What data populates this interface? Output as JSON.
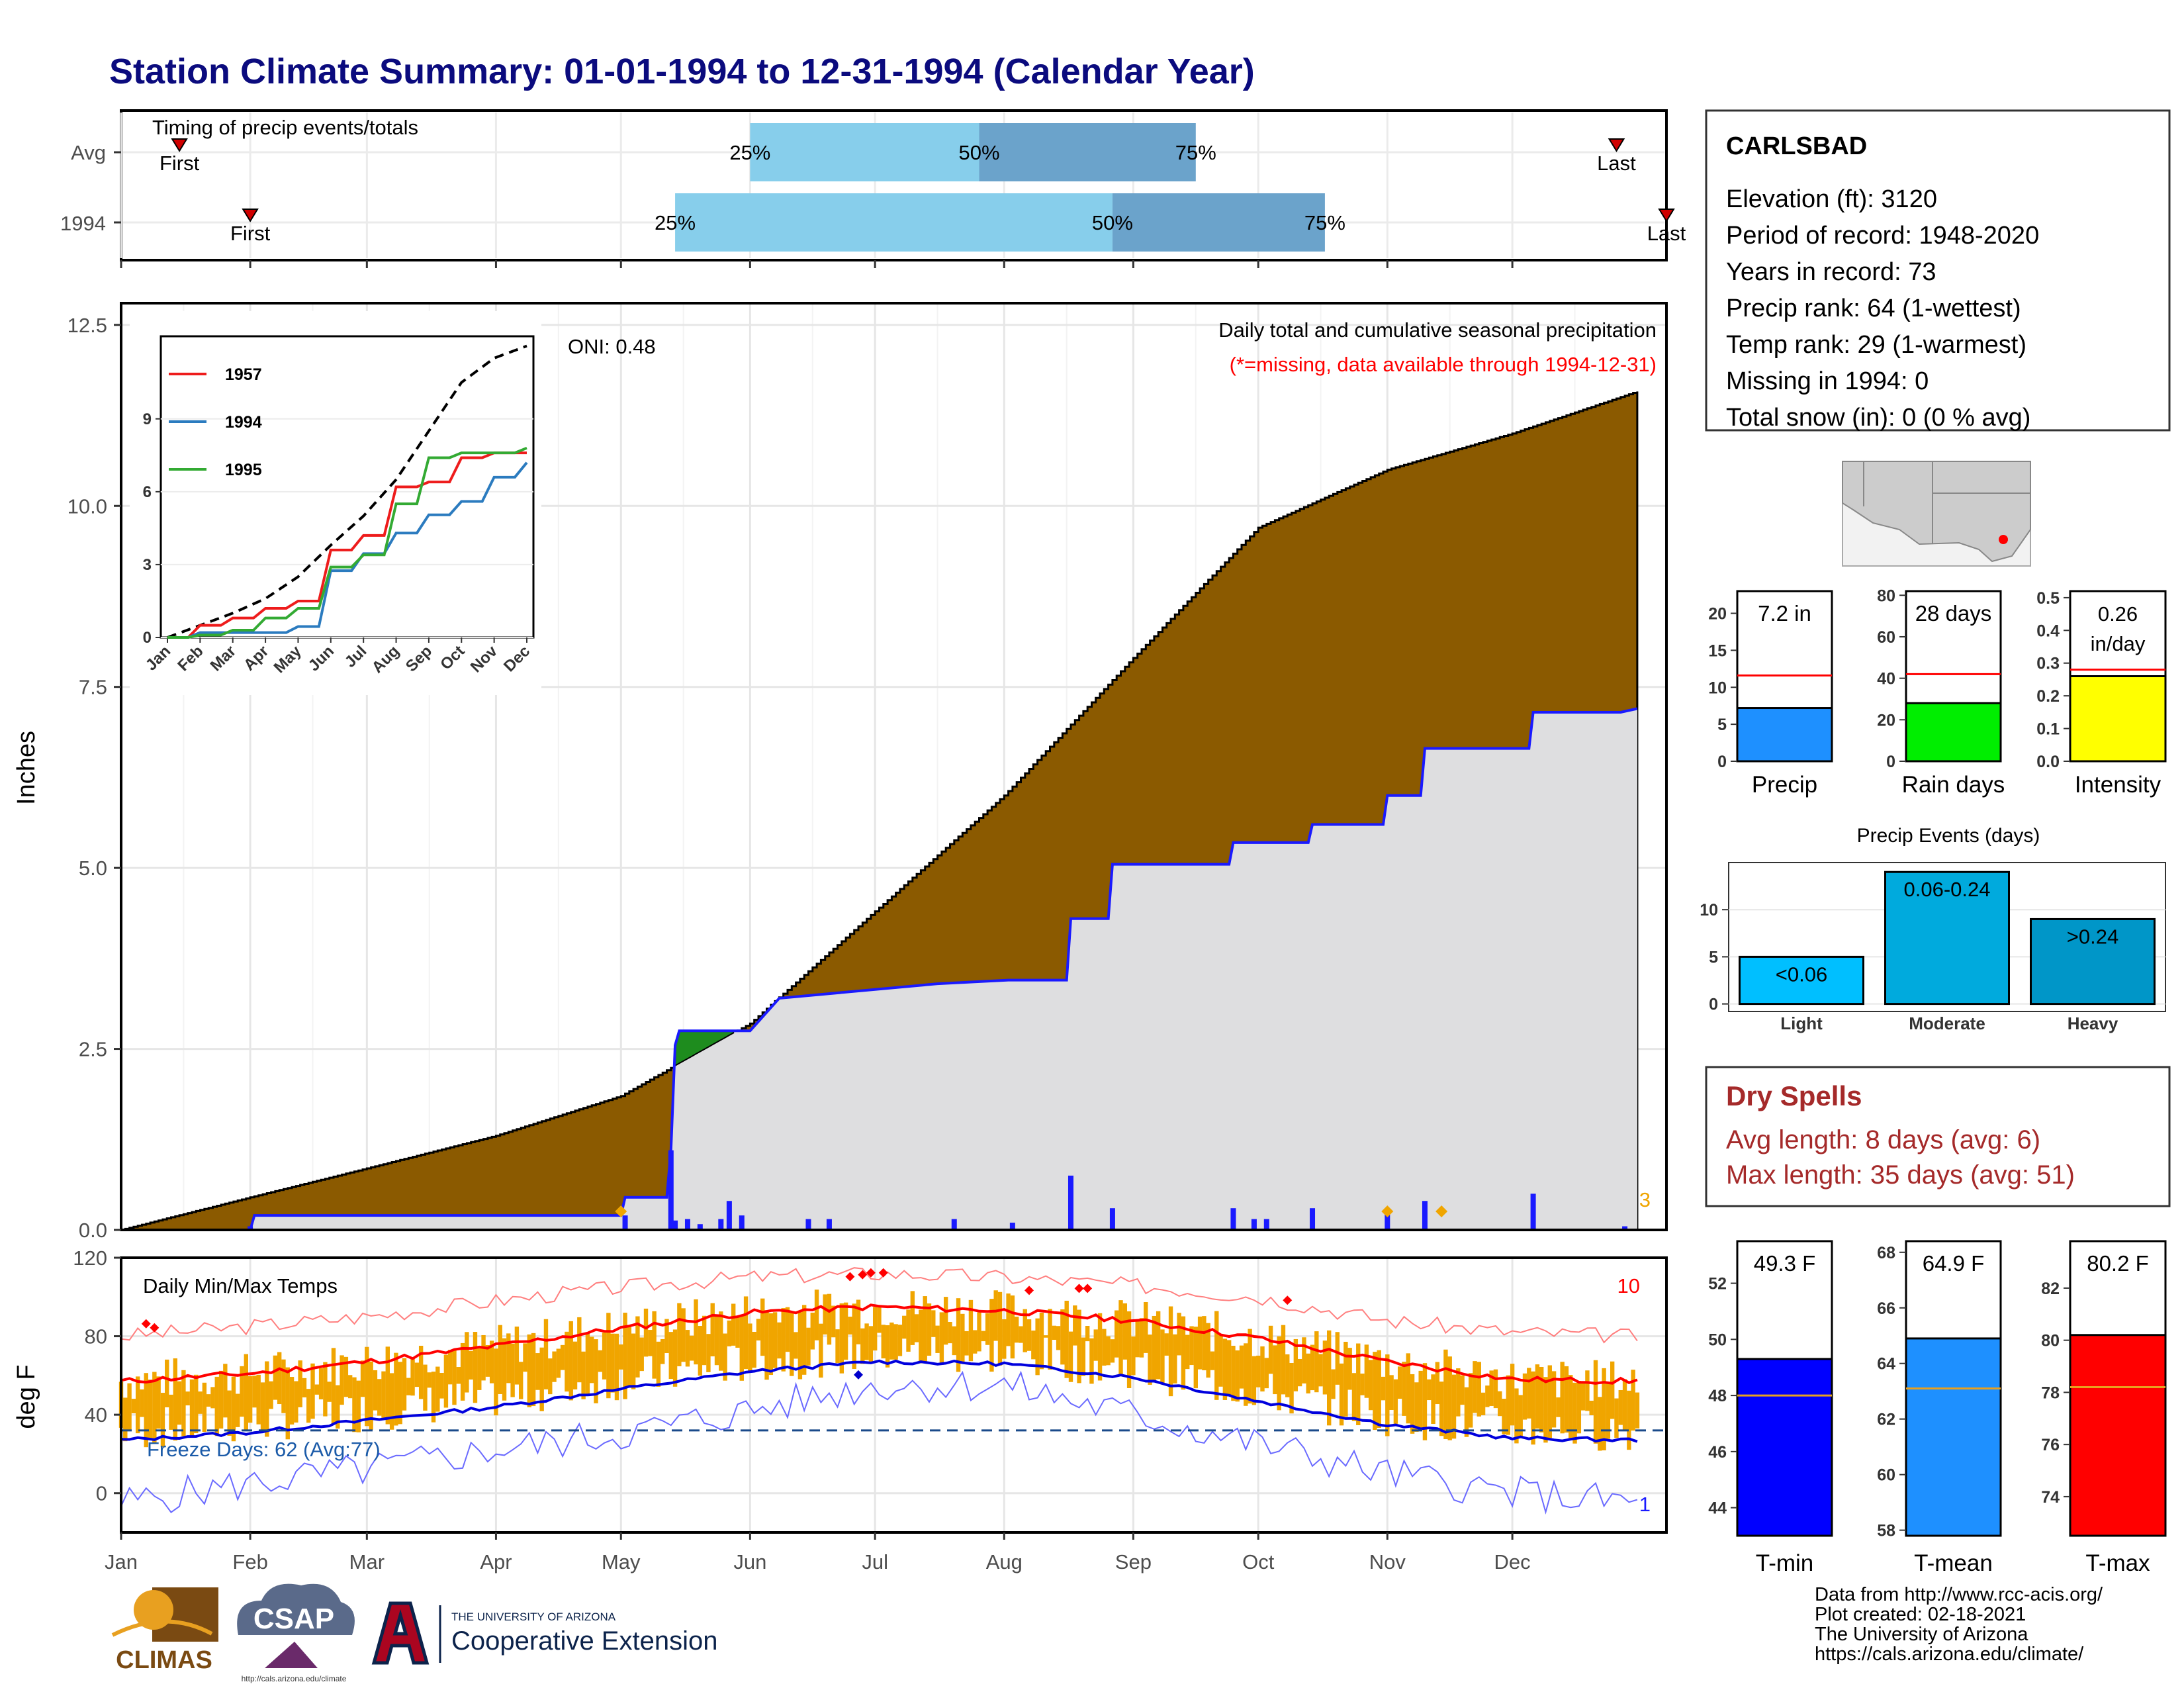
{
  "page": {
    "title": "Station Climate Summary: 01-01-1994 to 12-31-1994 (Calendar Year)",
    "months": [
      "Jan",
      "Feb",
      "Mar",
      "Apr",
      "May",
      "Jun",
      "Jul",
      "Aug",
      "Sep",
      "Oct",
      "Nov",
      "Dec"
    ]
  },
  "colors": {
    "title": "#0b0b7e",
    "brown": "#8b5a00",
    "gray_fill": "#dedee0",
    "blue_line": "#1a1aff",
    "light_blue": "#87ceeb",
    "mid_blue": "#6ba3cb",
    "red": "#ff0000",
    "orange": "#f0a500",
    "dark_red": "#a52a2a",
    "green_patch": "#1e8c1e"
  },
  "timing": {
    "label": "Timing of precip events/totals",
    "rows": [
      {
        "label": "Avg",
        "first": "First",
        "last": "Last",
        "p25": "25%",
        "p50": "50%",
        "p75": "75%",
        "first_day": 14,
        "p25_day": 151,
        "p50_day": 206,
        "p75_day": 258,
        "last_day": 359
      },
      {
        "label": "1994",
        "first": "First",
        "last": "Last",
        "p25": "25%",
        "p50": "50%",
        "p75": "75%",
        "first_day": 31,
        "p25_day": 133,
        "p50_day": 238,
        "p75_day": 289,
        "last_day": 371
      }
    ]
  },
  "precip_panel": {
    "ylabel": "Inches",
    "oni": "ONI: 0.48",
    "subtitle": "Daily total and cumulative seasonal precipitation",
    "note": "(*=missing, data available through 1994-12-31)",
    "count_label": "3"
  },
  "inset": {
    "months": [
      "Jan",
      "Feb",
      "Mar",
      "Apr",
      "May",
      "Jun",
      "Jul",
      "Aug",
      "Sep",
      "Oct",
      "Nov",
      "Dec"
    ],
    "yticks": [
      "0",
      "3",
      "6",
      "9"
    ],
    "legend": [
      {
        "name": "1957",
        "color": "#ee1c1c"
      },
      {
        "name": "1994",
        "color": "#2b7bbf"
      },
      {
        "name": "1995",
        "color": "#33aa33"
      }
    ]
  },
  "temp_panel": {
    "ylabel": "deg F",
    "title": "Daily Min/Max Temps",
    "freeze": "Freeze Days: 62 (Avg:77)",
    "count_hi": "10",
    "count_lo": "1"
  },
  "station": {
    "name": "CARLSBAD",
    "lines": [
      "Elevation (ft): 3120",
      "Period of record: 1948-2020",
      "Years in record: 73",
      "Precip rank: 64 (1-wettest)",
      "Temp rank: 29 (1-warmest)",
      "Missing in 1994: 0",
      "Total snow (in): 0 (0 % avg)"
    ]
  },
  "dry_spells": {
    "title": "Dry Spells",
    "avg": "Avg length: 8 days (avg: 6)",
    "max": "Max length: 35 days (avg: 51)"
  },
  "events": {
    "title": "Precip Events (days)",
    "bars": [
      {
        "name": "Light",
        "label": "<0.06",
        "value": 5,
        "color": "#00bfff"
      },
      {
        "name": "Moderate",
        "label": "0.06-0.24",
        "value": 14,
        "color": "#00aadd"
      },
      {
        "name": "Heavy",
        "label": ">0.24",
        "value": 9,
        "color": "#0096c8"
      }
    ]
  },
  "footer": {
    "lines": [
      "Data from http://www.rcc-acis.org/",
      "Plot created: 02-18-2021",
      "The University of Arizona",
      "https://cals.arizona.edu/climate/"
    ],
    "climas": "CLIMAS",
    "csap": "CSAP",
    "csap_url": "http://cals.arizona.edu/climate",
    "ua_small": "THE UNIVERSITY OF ARIZONA",
    "ua_big": "Cooperative Extension"
  },
  "chart_data": [
    {
      "type": "area",
      "title": "Daily total and cumulative seasonal precipitation",
      "ylabel": "Inches",
      "ylim": [
        0,
        12.8
      ],
      "yticks": [
        0,
        2.5,
        5.0,
        7.5,
        10.0,
        12.5
      ],
      "series": [
        {
          "name": "cumulative average",
          "x_day": [
            0,
            31,
            59,
            90,
            120,
            151,
            181,
            212,
            243,
            273,
            304,
            334,
            365
          ],
          "values": [
            0,
            0.45,
            0.85,
            1.3,
            1.85,
            2.85,
            4.4,
            6.0,
            7.9,
            9.7,
            10.5,
            11.0,
            11.6
          ]
        },
        {
          "name": "1994 cumulative",
          "x_day": [
            0,
            31,
            32,
            120,
            121,
            131,
            132,
            133,
            134,
            151,
            158,
            196,
            213,
            227,
            228,
            237,
            238,
            266,
            267,
            285,
            286,
            303,
            304,
            312,
            313,
            338,
            339,
            360,
            364
          ],
          "values": [
            0,
            0,
            0.2,
            0.2,
            0.45,
            0.45,
            1.1,
            2.55,
            2.75,
            2.75,
            3.2,
            3.4,
            3.45,
            3.45,
            4.3,
            4.3,
            5.05,
            5.05,
            5.35,
            5.35,
            5.6,
            5.6,
            6.0,
            6.0,
            6.65,
            6.65,
            7.15,
            7.15,
            7.2
          ]
        }
      ],
      "daily_bars": [
        {
          "day": 31,
          "value": 0.05
        },
        {
          "day": 121,
          "value": 0.2
        },
        {
          "day": 132,
          "value": 1.1
        },
        {
          "day": 133,
          "value": 0.13
        },
        {
          "day": 136,
          "value": 0.15
        },
        {
          "day": 139,
          "value": 0.08
        },
        {
          "day": 144,
          "value": 0.15
        },
        {
          "day": 146,
          "value": 0.4
        },
        {
          "day": 149,
          "value": 0.2
        },
        {
          "day": 165,
          "value": 0.15
        },
        {
          "day": 170,
          "value": 0.15
        },
        {
          "day": 200,
          "value": 0.15
        },
        {
          "day": 214,
          "value": 0.1
        },
        {
          "day": 228,
          "value": 0.75
        },
        {
          "day": 238,
          "value": 0.3
        },
        {
          "day": 267,
          "value": 0.3
        },
        {
          "day": 272,
          "value": 0.15
        },
        {
          "day": 275,
          "value": 0.15
        },
        {
          "day": 286,
          "value": 0.3
        },
        {
          "day": 304,
          "value": 0.3
        },
        {
          "day": 313,
          "value": 0.4
        },
        {
          "day": 339,
          "value": 0.5
        },
        {
          "day": 361,
          "value": 0.05
        }
      ]
    },
    {
      "type": "line",
      "title": "",
      "xlabel": "",
      "ylabel": "",
      "ylim": [
        0,
        12.4
      ],
      "yticks": [
        0,
        3,
        6,
        9
      ],
      "x": [
        "Jan",
        "Feb",
        "Mar",
        "Apr",
        "May",
        "Jun",
        "Jul",
        "Aug",
        "Sep",
        "Oct",
        "Nov",
        "Dec"
      ],
      "series": [
        {
          "name": "",
          "values": [
            0,
            0.5,
            1.0,
            1.6,
            2.5,
            3.8,
            5.0,
            6.5,
            8.5,
            10.5,
            11.5,
            12.0
          ]
        },
        {
          "name": "1957",
          "values": [
            0,
            0.5,
            0.8,
            1.2,
            1.5,
            3.6,
            4.2,
            6.2,
            6.4,
            7.4,
            7.6,
            7.6
          ]
        },
        {
          "name": "1994",
          "values": [
            0,
            0.2,
            0.2,
            0.2,
            0.45,
            2.75,
            3.45,
            4.3,
            5.05,
            5.6,
            6.6,
            7.2
          ]
        },
        {
          "name": "1995",
          "values": [
            0,
            0.1,
            0.3,
            0.8,
            1.2,
            2.9,
            3.4,
            5.5,
            7.4,
            7.6,
            7.6,
            7.8
          ]
        }
      ]
    },
    {
      "type": "line",
      "title": "Daily Min/Max Temps",
      "ylabel": "deg F",
      "ylim": [
        -20,
        120
      ],
      "yticks": [
        0,
        40,
        80,
        120
      ],
      "freeze_line": 32,
      "series": [
        {
          "name": "avg max",
          "x_day": [
            0,
            31,
            59,
            90,
            120,
            151,
            181,
            212,
            243,
            273,
            304,
            334,
            365
          ],
          "values": [
            57,
            61,
            67,
            75,
            84,
            92,
            95,
            93,
            88,
            79,
            67,
            58,
            57
          ]
        },
        {
          "name": "avg min",
          "x_day": [
            0,
            31,
            59,
            90,
            120,
            151,
            181,
            212,
            243,
            273,
            304,
            334,
            365
          ],
          "values": [
            27,
            31,
            37,
            44,
            53,
            62,
            67,
            66,
            59,
            47,
            35,
            28,
            27
          ]
        },
        {
          "name": "record high",
          "x_day": [
            0,
            31,
            59,
            90,
            120,
            151,
            181,
            212,
            243,
            273,
            304,
            334,
            365
          ],
          "values": [
            80,
            85,
            90,
            98,
            105,
            110,
            112,
            110,
            106,
            100,
            88,
            82,
            80
          ]
        },
        {
          "name": "record low",
          "x_day": [
            0,
            31,
            59,
            90,
            120,
            151,
            181,
            212,
            243,
            273,
            304,
            334,
            365
          ],
          "values": [
            -5,
            5,
            12,
            22,
            30,
            42,
            55,
            55,
            40,
            25,
            10,
            0,
            -5
          ]
        }
      ]
    },
    {
      "type": "bar",
      "title": "",
      "categories": [
        "Precip"
      ],
      "values": [
        7.2
      ],
      "label": "7.2 in",
      "avg": 11.6,
      "ylim": [
        0,
        23
      ],
      "yticks": [
        0,
        5,
        10,
        15,
        20
      ],
      "xlabel": "Precip"
    },
    {
      "type": "bar",
      "title": "",
      "categories": [
        "Rain days"
      ],
      "values": [
        28
      ],
      "label": "28 days",
      "avg": 42,
      "ylim": [
        0,
        82
      ],
      "yticks": [
        0,
        20,
        40,
        60,
        80
      ],
      "xlabel": "Rain days"
    },
    {
      "type": "bar",
      "title": "",
      "categories": [
        "Intensity"
      ],
      "values": [
        0.26
      ],
      "label": [
        "0.26",
        "in/day"
      ],
      "avg": 0.28,
      "ylim": [
        0,
        0.52
      ],
      "yticks": [
        0.0,
        0.1,
        0.2,
        0.3,
        0.4,
        0.5
      ],
      "xlabel": "Intensity"
    },
    {
      "type": "bar",
      "title": "Precip Events (days)",
      "categories": [
        "Light",
        "Moderate",
        "Heavy"
      ],
      "values": [
        5,
        14,
        9
      ],
      "ylim": [
        -0.8,
        15
      ],
      "yticks": [
        0,
        5,
        10
      ]
    },
    {
      "type": "bar",
      "title": "",
      "categories": [
        "T-min"
      ],
      "values": [
        49.3
      ],
      "label": "49.3 F",
      "avg": 48.0,
      "ylim": [
        43,
        53.5
      ],
      "yticks": [
        44,
        46,
        48,
        50,
        52
      ],
      "xlabel": "T-min"
    },
    {
      "type": "bar",
      "title": "",
      "categories": [
        "T-mean"
      ],
      "values": [
        64.9
      ],
      "label": "64.9 F",
      "avg": 63.1,
      "ylim": [
        57.8,
        68.4
      ],
      "yticks": [
        58,
        60,
        62,
        64,
        66,
        68
      ],
      "xlabel": "T-mean"
    },
    {
      "type": "bar",
      "title": "",
      "categories": [
        "T-max"
      ],
      "values": [
        80.2
      ],
      "label": "80.2 F",
      "avg": 78.2,
      "ylim": [
        72.5,
        83.8
      ],
      "yticks": [
        74,
        76,
        78,
        80,
        82
      ],
      "xlabel": "T-max"
    }
  ]
}
